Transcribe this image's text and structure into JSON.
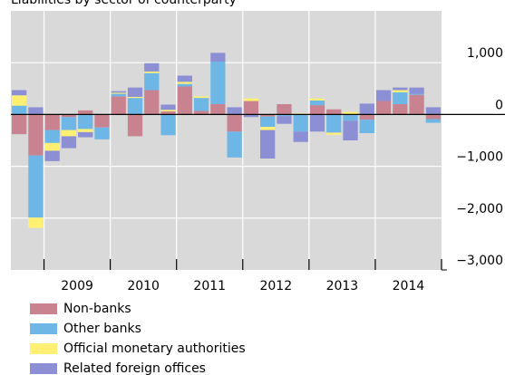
{
  "chart_data": {
    "type": "bar",
    "stacked": true,
    "title": "Liabilities by sector of counterparty",
    "categories": [
      null,
      null,
      null,
      null,
      null,
      null,
      null,
      null,
      null,
      null,
      null,
      null,
      null,
      null,
      null,
      null,
      null,
      null,
      null,
      null,
      null,
      null,
      null,
      null,
      null,
      null
    ],
    "year_labels": [
      "2009",
      "2010",
      "2011",
      "2012",
      "2013",
      "2014"
    ],
    "series": [
      {
        "name": "Non-banks",
        "color": "#c98290",
        "values": [
          -380,
          -790,
          -300,
          -50,
          80,
          -250,
          350,
          -420,
          470,
          60,
          540,
          70,
          200,
          -330,
          260,
          -40,
          200,
          0,
          180,
          100,
          0,
          -100,
          260,
          200,
          380,
          -90
        ]
      },
      {
        "name": "Other banks",
        "color": "#6db6e6",
        "values": [
          170,
          -1200,
          -250,
          -250,
          -280,
          -230,
          50,
          320,
          330,
          -400,
          50,
          250,
          820,
          -500,
          0,
          -200,
          -30,
          -330,
          90,
          -350,
          -120,
          -260,
          0,
          230,
          20,
          -70
        ]
      },
      {
        "name": "Official monetary authorities",
        "color": "#fff073",
        "values": [
          200,
          -200,
          -150,
          -120,
          -60,
          0,
          20,
          20,
          30,
          30,
          40,
          30,
          0,
          0,
          50,
          -60,
          0,
          20,
          40,
          -40,
          50,
          0,
          0,
          40,
          0,
          0
        ]
      },
      {
        "name": "Related foreign offices",
        "color": "#8c8fd4",
        "values": [
          100,
          140,
          -200,
          -230,
          -100,
          0,
          30,
          180,
          160,
          100,
          120,
          0,
          170,
          140,
          -50,
          -550,
          -150,
          -200,
          -330,
          0,
          -380,
          210,
          210,
          50,
          120,
          140
        ]
      }
    ],
    "ylim": [
      -3000,
      2000
    ],
    "yticks": [
      {
        "value": 1000,
        "label": "1,000"
      },
      0,
      {
        "value": -1000,
        "label": "−1,000"
      },
      {
        "value": -2000,
        "label": "−2,000"
      },
      {
        "value": -3000,
        "label": "−3,000"
      }
    ],
    "grid": true
  }
}
